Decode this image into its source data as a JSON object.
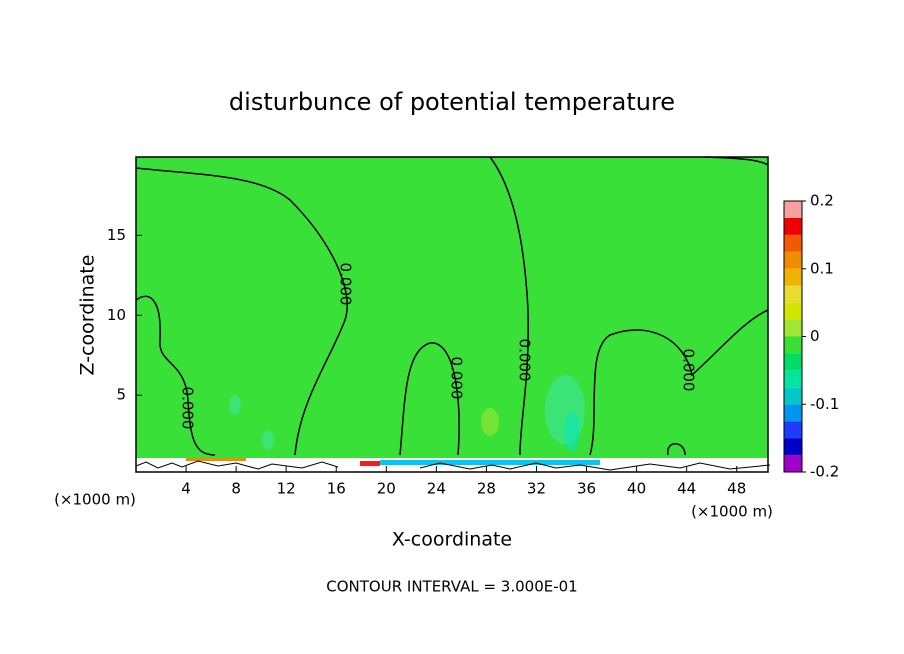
{
  "chart_data": {
    "type": "contour",
    "title": "disturbunce of potential temperature",
    "xlabel": "X-coordinate",
    "ylabel": "Z-coordinate",
    "x_unit_left": "(×1000 m)",
    "x_unit_right": "(×1000 m)",
    "footer": "CONTOUR INTERVAL = 3.000E-01",
    "xlim": [
      0,
      50.5
    ],
    "ylim": [
      0.2,
      19.9
    ],
    "xticks": [
      4,
      8,
      12,
      16,
      20,
      24,
      28,
      32,
      36,
      40,
      44,
      48
    ],
    "yticks": [
      5,
      10,
      15
    ],
    "field_color": "#38e038",
    "contour_labels": [
      "0.000",
      "0.000",
      "0.000",
      "0.000",
      "0.000"
    ],
    "colorbar": {
      "lim": [
        -0.2,
        0.2
      ],
      "ticks": [
        -0.2,
        -0.1,
        0,
        0.1,
        0.2
      ],
      "colors": [
        "#a000c8",
        "#0000c8",
        "#1e3cff",
        "#0096f0",
        "#00c8c8",
        "#00e6a0",
        "#00dc64",
        "#38e038",
        "#a0e632",
        "#d2e600",
        "#e6dc32",
        "#f0b400",
        "#f08c00",
        "#f05a00",
        "#f00000",
        "#f8a0a0"
      ]
    }
  }
}
